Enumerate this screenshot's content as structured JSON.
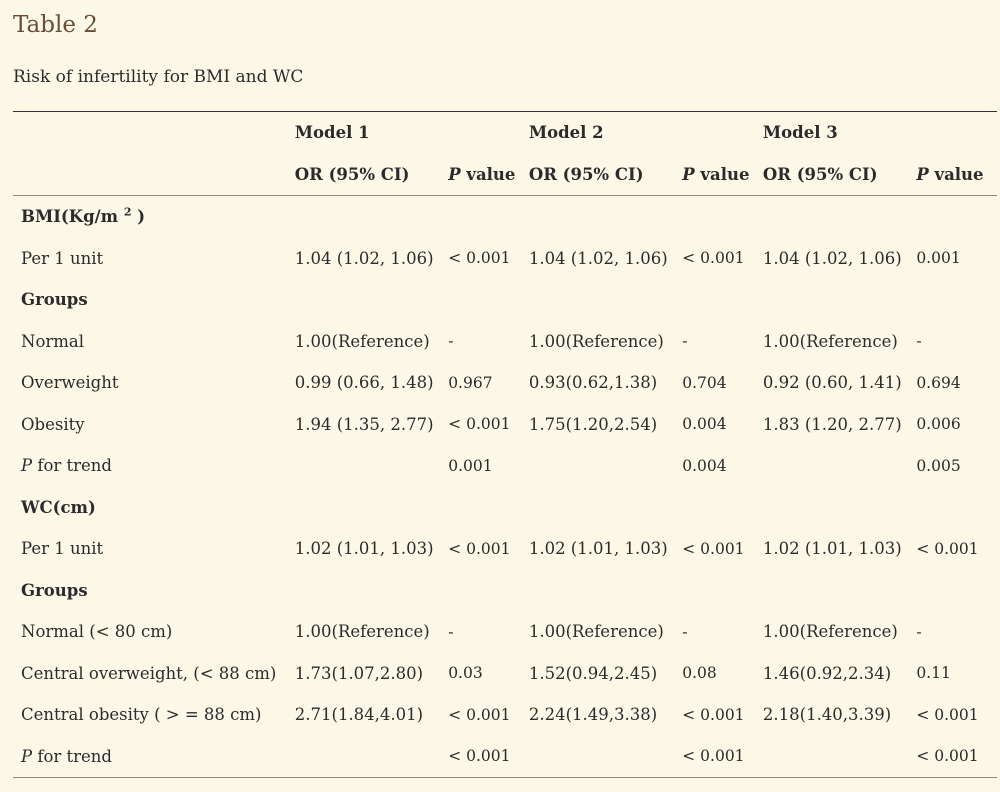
{
  "title": "Table 2",
  "caption": "Risk of infertility for BMI and WC",
  "header": {
    "models": [
      "Model 1",
      "Model 2",
      "Model 3"
    ],
    "or_label": "OR (95% CI)",
    "p_italic": "P",
    "p_rest": " value"
  },
  "sections": [
    {
      "heading_main": "BMI(Kg/m ",
      "heading_sup": "2",
      "heading_end": " )",
      "rows": [
        {
          "label": "Per 1 unit",
          "label_italic": "",
          "cells": [
            "1.04 (1.02, 1.06)",
            "< 0.001",
            "1.04 (1.02, 1.06)",
            "< 0.001",
            "1.04 (1.02, 1.06)",
            "0.001"
          ]
        },
        {
          "label": "Groups",
          "label_italic": "",
          "bold": true,
          "cells": [
            "",
            "",
            "",
            "",
            "",
            ""
          ]
        },
        {
          "label": "Normal",
          "label_italic": "",
          "cells": [
            "1.00(Reference)",
            "-",
            "1.00(Reference)",
            "-",
            "1.00(Reference)",
            "-"
          ]
        },
        {
          "label": "Overweight",
          "label_italic": "",
          "cells": [
            "0.99 (0.66, 1.48)",
            "0.967",
            "0.93(0.62,1.38)",
            "0.704",
            "0.92 (0.60, 1.41)",
            "0.694"
          ]
        },
        {
          "label": "Obesity",
          "label_italic": "",
          "cells": [
            "1.94 (1.35, 2.77)",
            "< 0.001",
            "1.75(1.20,2.54)",
            "0.004",
            "1.83 (1.20, 2.77)",
            "0.006"
          ]
        },
        {
          "label": " for trend",
          "label_italic": "P",
          "cells": [
            "",
            "0.001",
            "",
            "0.004",
            "",
            "0.005"
          ]
        }
      ]
    },
    {
      "heading_main": "WC(cm)",
      "heading_sup": "",
      "heading_end": "",
      "rows": [
        {
          "label": "Per 1 unit",
          "label_italic": "",
          "cells": [
            "1.02 (1.01, 1.03)",
            "< 0.001",
            "1.02 (1.01, 1.03)",
            "< 0.001",
            "1.02 (1.01, 1.03)",
            "< 0.001"
          ]
        },
        {
          "label": "Groups",
          "label_italic": "",
          "bold": true,
          "cells": [
            "",
            "",
            "",
            "",
            "",
            ""
          ]
        },
        {
          "label": "Normal (< 80 cm)",
          "label_italic": "",
          "cells": [
            "1.00(Reference)",
            "-",
            "1.00(Reference)",
            "-",
            "1.00(Reference)",
            "-"
          ]
        },
        {
          "label": "Central overweight, (< 88 cm)",
          "label_italic": "",
          "cells": [
            "1.73(1.07,2.80)",
            "0.03",
            "1.52(0.94,2.45)",
            "0.08",
            "1.46(0.92,2.34)",
            "0.11"
          ]
        },
        {
          "label": "Central obesity ( > = 88 cm)",
          "label_italic": "",
          "cells": [
            "2.71(1.84,4.01)",
            "< 0.001",
            "2.24(1.49,3.38)",
            "< 0.001",
            "2.18(1.40,3.39)",
            "< 0.001"
          ]
        },
        {
          "label": " for trend",
          "label_italic": "P",
          "cells": [
            "",
            "< 0.001",
            "",
            "< 0.001",
            "",
            "< 0.001"
          ]
        }
      ]
    }
  ]
}
